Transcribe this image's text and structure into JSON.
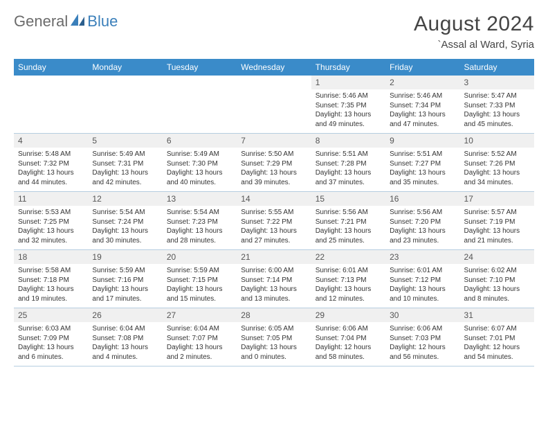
{
  "logo": {
    "part1": "General",
    "part2": "Blue"
  },
  "title": "August 2024",
  "location": "`Assal al Ward, Syria",
  "colors": {
    "header_bg": "#3a8bc9",
    "header_text": "#ffffff",
    "daynum_bg": "#f0f0f0",
    "row_border": "#b5cde0",
    "logo_gray": "#6b6b6b",
    "logo_blue": "#3a7fba"
  },
  "weekdays": [
    "Sunday",
    "Monday",
    "Tuesday",
    "Wednesday",
    "Thursday",
    "Friday",
    "Saturday"
  ],
  "weeks": [
    [
      {
        "n": "",
        "lines": [
          "",
          "",
          "",
          ""
        ],
        "empty": true
      },
      {
        "n": "",
        "lines": [
          "",
          "",
          "",
          ""
        ],
        "empty": true
      },
      {
        "n": "",
        "lines": [
          "",
          "",
          "",
          ""
        ],
        "empty": true
      },
      {
        "n": "",
        "lines": [
          "",
          "",
          "",
          ""
        ],
        "empty": true
      },
      {
        "n": "1",
        "lines": [
          "Sunrise: 5:46 AM",
          "Sunset: 7:35 PM",
          "Daylight: 13 hours",
          "and 49 minutes."
        ]
      },
      {
        "n": "2",
        "lines": [
          "Sunrise: 5:46 AM",
          "Sunset: 7:34 PM",
          "Daylight: 13 hours",
          "and 47 minutes."
        ]
      },
      {
        "n": "3",
        "lines": [
          "Sunrise: 5:47 AM",
          "Sunset: 7:33 PM",
          "Daylight: 13 hours",
          "and 45 minutes."
        ]
      }
    ],
    [
      {
        "n": "4",
        "lines": [
          "Sunrise: 5:48 AM",
          "Sunset: 7:32 PM",
          "Daylight: 13 hours",
          "and 44 minutes."
        ]
      },
      {
        "n": "5",
        "lines": [
          "Sunrise: 5:49 AM",
          "Sunset: 7:31 PM",
          "Daylight: 13 hours",
          "and 42 minutes."
        ]
      },
      {
        "n": "6",
        "lines": [
          "Sunrise: 5:49 AM",
          "Sunset: 7:30 PM",
          "Daylight: 13 hours",
          "and 40 minutes."
        ]
      },
      {
        "n": "7",
        "lines": [
          "Sunrise: 5:50 AM",
          "Sunset: 7:29 PM",
          "Daylight: 13 hours",
          "and 39 minutes."
        ]
      },
      {
        "n": "8",
        "lines": [
          "Sunrise: 5:51 AM",
          "Sunset: 7:28 PM",
          "Daylight: 13 hours",
          "and 37 minutes."
        ]
      },
      {
        "n": "9",
        "lines": [
          "Sunrise: 5:51 AM",
          "Sunset: 7:27 PM",
          "Daylight: 13 hours",
          "and 35 minutes."
        ]
      },
      {
        "n": "10",
        "lines": [
          "Sunrise: 5:52 AM",
          "Sunset: 7:26 PM",
          "Daylight: 13 hours",
          "and 34 minutes."
        ]
      }
    ],
    [
      {
        "n": "11",
        "lines": [
          "Sunrise: 5:53 AM",
          "Sunset: 7:25 PM",
          "Daylight: 13 hours",
          "and 32 minutes."
        ]
      },
      {
        "n": "12",
        "lines": [
          "Sunrise: 5:54 AM",
          "Sunset: 7:24 PM",
          "Daylight: 13 hours",
          "and 30 minutes."
        ]
      },
      {
        "n": "13",
        "lines": [
          "Sunrise: 5:54 AM",
          "Sunset: 7:23 PM",
          "Daylight: 13 hours",
          "and 28 minutes."
        ]
      },
      {
        "n": "14",
        "lines": [
          "Sunrise: 5:55 AM",
          "Sunset: 7:22 PM",
          "Daylight: 13 hours",
          "and 27 minutes."
        ]
      },
      {
        "n": "15",
        "lines": [
          "Sunrise: 5:56 AM",
          "Sunset: 7:21 PM",
          "Daylight: 13 hours",
          "and 25 minutes."
        ]
      },
      {
        "n": "16",
        "lines": [
          "Sunrise: 5:56 AM",
          "Sunset: 7:20 PM",
          "Daylight: 13 hours",
          "and 23 minutes."
        ]
      },
      {
        "n": "17",
        "lines": [
          "Sunrise: 5:57 AM",
          "Sunset: 7:19 PM",
          "Daylight: 13 hours",
          "and 21 minutes."
        ]
      }
    ],
    [
      {
        "n": "18",
        "lines": [
          "Sunrise: 5:58 AM",
          "Sunset: 7:18 PM",
          "Daylight: 13 hours",
          "and 19 minutes."
        ]
      },
      {
        "n": "19",
        "lines": [
          "Sunrise: 5:59 AM",
          "Sunset: 7:16 PM",
          "Daylight: 13 hours",
          "and 17 minutes."
        ]
      },
      {
        "n": "20",
        "lines": [
          "Sunrise: 5:59 AM",
          "Sunset: 7:15 PM",
          "Daylight: 13 hours",
          "and 15 minutes."
        ]
      },
      {
        "n": "21",
        "lines": [
          "Sunrise: 6:00 AM",
          "Sunset: 7:14 PM",
          "Daylight: 13 hours",
          "and 13 minutes."
        ]
      },
      {
        "n": "22",
        "lines": [
          "Sunrise: 6:01 AM",
          "Sunset: 7:13 PM",
          "Daylight: 13 hours",
          "and 12 minutes."
        ]
      },
      {
        "n": "23",
        "lines": [
          "Sunrise: 6:01 AM",
          "Sunset: 7:12 PM",
          "Daylight: 13 hours",
          "and 10 minutes."
        ]
      },
      {
        "n": "24",
        "lines": [
          "Sunrise: 6:02 AM",
          "Sunset: 7:10 PM",
          "Daylight: 13 hours",
          "and 8 minutes."
        ]
      }
    ],
    [
      {
        "n": "25",
        "lines": [
          "Sunrise: 6:03 AM",
          "Sunset: 7:09 PM",
          "Daylight: 13 hours",
          "and 6 minutes."
        ]
      },
      {
        "n": "26",
        "lines": [
          "Sunrise: 6:04 AM",
          "Sunset: 7:08 PM",
          "Daylight: 13 hours",
          "and 4 minutes."
        ]
      },
      {
        "n": "27",
        "lines": [
          "Sunrise: 6:04 AM",
          "Sunset: 7:07 PM",
          "Daylight: 13 hours",
          "and 2 minutes."
        ]
      },
      {
        "n": "28",
        "lines": [
          "Sunrise: 6:05 AM",
          "Sunset: 7:05 PM",
          "Daylight: 13 hours",
          "and 0 minutes."
        ]
      },
      {
        "n": "29",
        "lines": [
          "Sunrise: 6:06 AM",
          "Sunset: 7:04 PM",
          "Daylight: 12 hours",
          "and 58 minutes."
        ]
      },
      {
        "n": "30",
        "lines": [
          "Sunrise: 6:06 AM",
          "Sunset: 7:03 PM",
          "Daylight: 12 hours",
          "and 56 minutes."
        ]
      },
      {
        "n": "31",
        "lines": [
          "Sunrise: 6:07 AM",
          "Sunset: 7:01 PM",
          "Daylight: 12 hours",
          "and 54 minutes."
        ]
      }
    ]
  ]
}
